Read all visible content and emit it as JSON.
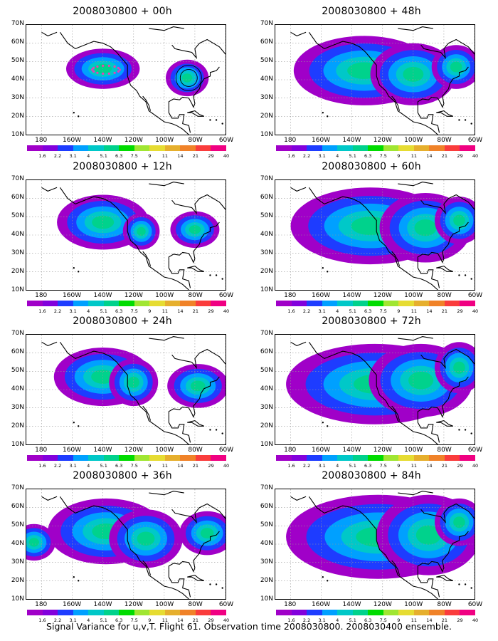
{
  "panels": [
    {
      "title": "2008030800 + 00h",
      "hour": 0
    },
    {
      "title": "2008030800 + 48h",
      "hour": 48
    },
    {
      "title": "2008030800 + 12h",
      "hour": 12
    },
    {
      "title": "2008030800 + 60h",
      "hour": 60
    },
    {
      "title": "2008030800 + 24h",
      "hour": 24
    },
    {
      "title": "2008030800 + 72h",
      "hour": 72
    },
    {
      "title": "2008030800 + 36h",
      "hour": 36
    },
    {
      "title": "2008030800 + 84h",
      "hour": 84
    }
  ],
  "axes": {
    "lat_labels": [
      "70N",
      "60N",
      "50N",
      "40N",
      "30N",
      "20N",
      "10N"
    ],
    "lon_labels": [
      "180",
      "160W",
      "140W",
      "120W",
      "100W",
      "80W",
      "60W"
    ]
  },
  "colorbar": {
    "labels": [
      "1.6",
      "2.2",
      "3.1",
      "4",
      "5.1",
      "6.3",
      "7.5",
      "9",
      "11",
      "14",
      "21",
      "29",
      "40"
    ],
    "colors": [
      "#a000c8",
      "#8200dc",
      "#1e3cff",
      "#00a0ff",
      "#00c8c8",
      "#00d28c",
      "#00dc00",
      "#a0e632",
      "#e6dc32",
      "#e6af2d",
      "#f08228",
      "#fa3c3c",
      "#f00082"
    ]
  },
  "caption": "Signal Variance for u,v,T. Flight 61. Observation time 2008030800. 2008030400 ensemble."
}
